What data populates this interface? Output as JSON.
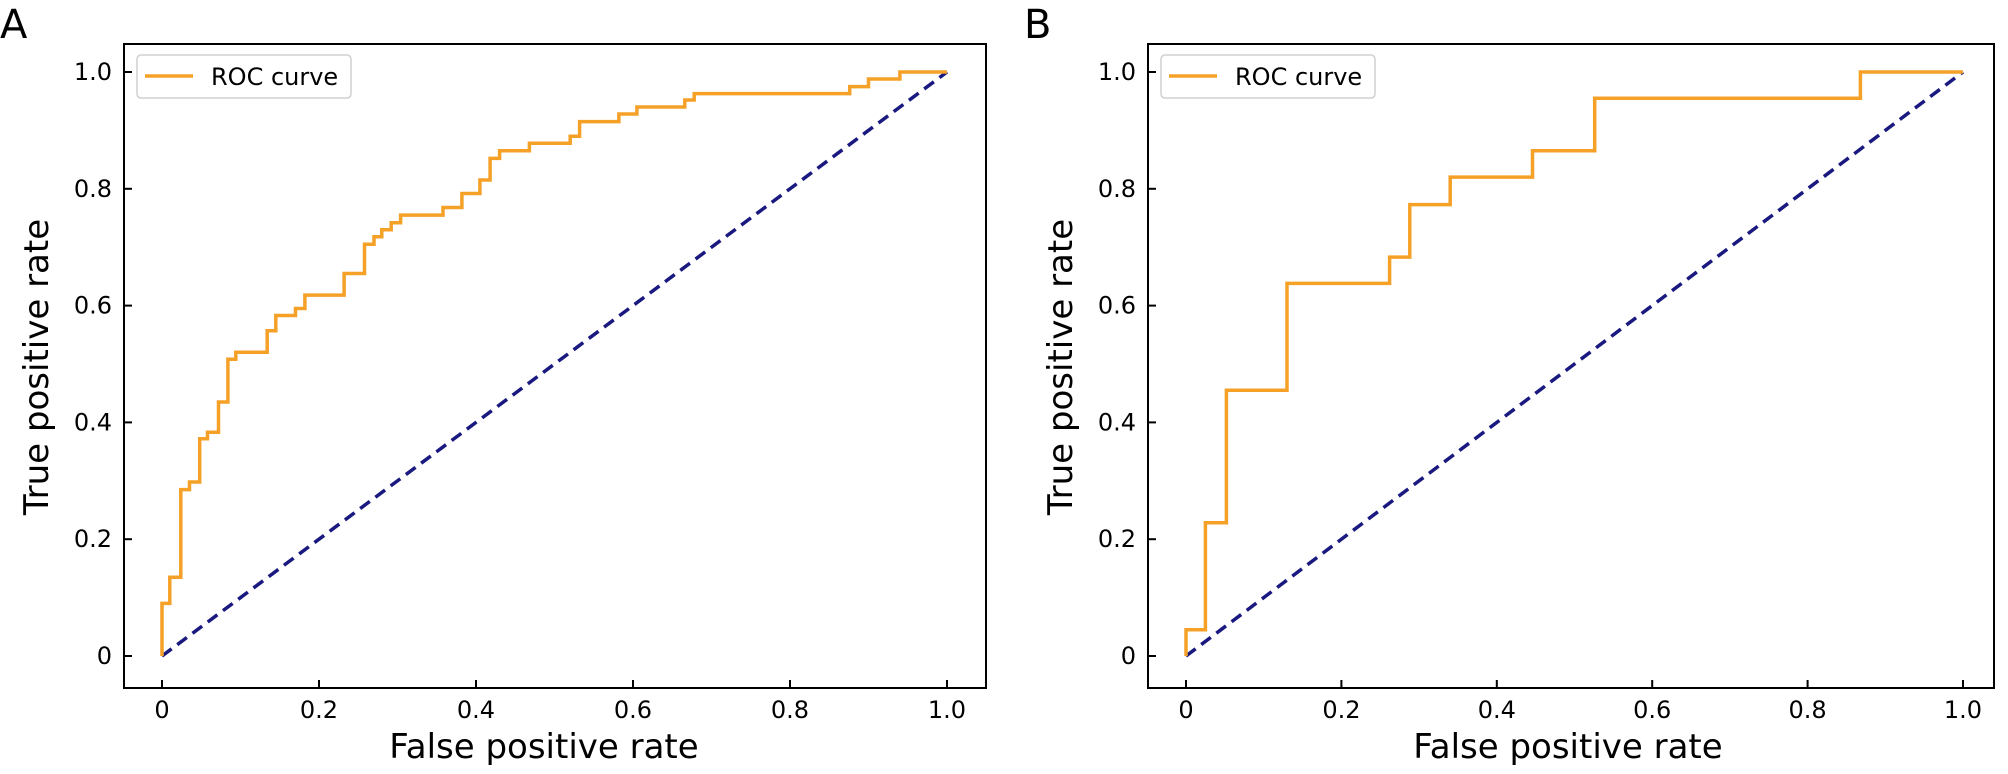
{
  "colors": {
    "roc": "#f5a128",
    "chance": "#191980",
    "axis": "#000000"
  },
  "chart_data": [
    {
      "panel": "A",
      "type": "line",
      "xlabel": "False positive rate",
      "ylabel": "True positive rate",
      "xlim": [
        0,
        1
      ],
      "ylim": [
        0,
        1
      ],
      "xticks": [
        {
          "v": 0,
          "label": "0"
        },
        {
          "v": 0.2,
          "label": "0.2"
        },
        {
          "v": 0.4,
          "label": "0.4"
        },
        {
          "v": 0.6,
          "label": "0.6"
        },
        {
          "v": 0.8,
          "label": "0.8"
        },
        {
          "v": 1.0,
          "label": "1.0"
        }
      ],
      "yticks": [
        {
          "v": 0,
          "label": "0"
        },
        {
          "v": 0.2,
          "label": "0.2"
        },
        {
          "v": 0.4,
          "label": "0.4"
        },
        {
          "v": 0.6,
          "label": "0.6"
        },
        {
          "v": 0.8,
          "label": "0.8"
        },
        {
          "v": 1.0,
          "label": "1.0"
        }
      ],
      "legend": {
        "placement": "top-left",
        "entries": [
          "ROC curve"
        ]
      },
      "series": [
        {
          "name": "ROC curve",
          "style": "step",
          "points": [
            [
              0,
              0
            ],
            [
              0,
              0.09
            ],
            [
              0.01,
              0.09
            ],
            [
              0.01,
              0.135
            ],
            [
              0.024,
              0.135
            ],
            [
              0.024,
              0.285
            ],
            [
              0.035,
              0.285
            ],
            [
              0.035,
              0.298
            ],
            [
              0.048,
              0.298
            ],
            [
              0.048,
              0.372
            ],
            [
              0.058,
              0.372
            ],
            [
              0.058,
              0.383
            ],
            [
              0.072,
              0.383
            ],
            [
              0.072,
              0.435
            ],
            [
              0.084,
              0.435
            ],
            [
              0.084,
              0.508
            ],
            [
              0.094,
              0.508
            ],
            [
              0.094,
              0.52
            ],
            [
              0.134,
              0.52
            ],
            [
              0.134,
              0.557
            ],
            [
              0.145,
              0.557
            ],
            [
              0.145,
              0.583
            ],
            [
              0.17,
              0.583
            ],
            [
              0.17,
              0.595
            ],
            [
              0.182,
              0.595
            ],
            [
              0.182,
              0.618
            ],
            [
              0.232,
              0.618
            ],
            [
              0.232,
              0.655
            ],
            [
              0.258,
              0.655
            ],
            [
              0.258,
              0.705
            ],
            [
              0.27,
              0.705
            ],
            [
              0.27,
              0.718
            ],
            [
              0.28,
              0.718
            ],
            [
              0.28,
              0.73
            ],
            [
              0.292,
              0.73
            ],
            [
              0.292,
              0.742
            ],
            [
              0.304,
              0.742
            ],
            [
              0.304,
              0.755
            ],
            [
              0.358,
              0.755
            ],
            [
              0.358,
              0.768
            ],
            [
              0.382,
              0.768
            ],
            [
              0.382,
              0.792
            ],
            [
              0.405,
              0.792
            ],
            [
              0.405,
              0.815
            ],
            [
              0.418,
              0.815
            ],
            [
              0.418,
              0.852
            ],
            [
              0.43,
              0.852
            ],
            [
              0.43,
              0.865
            ],
            [
              0.468,
              0.865
            ],
            [
              0.468,
              0.878
            ],
            [
              0.52,
              0.878
            ],
            [
              0.52,
              0.89
            ],
            [
              0.532,
              0.89
            ],
            [
              0.532,
              0.915
            ],
            [
              0.582,
              0.915
            ],
            [
              0.582,
              0.928
            ],
            [
              0.605,
              0.928
            ],
            [
              0.605,
              0.94
            ],
            [
              0.666,
              0.94
            ],
            [
              0.666,
              0.952
            ],
            [
              0.678,
              0.952
            ],
            [
              0.678,
              0.963
            ],
            [
              0.876,
              0.963
            ],
            [
              0.876,
              0.975
            ],
            [
              0.9,
              0.975
            ],
            [
              0.9,
              0.988
            ],
            [
              0.94,
              0.988
            ],
            [
              0.94,
              1.0
            ],
            [
              1.0,
              1.0
            ]
          ]
        },
        {
          "role": "chance",
          "style": "dashed",
          "points": [
            [
              0,
              0
            ],
            [
              1,
              1
            ]
          ]
        }
      ]
    },
    {
      "panel": "B",
      "type": "line",
      "xlabel": "False positive rate",
      "ylabel": "True positive rate",
      "xlim": [
        0,
        1
      ],
      "ylim": [
        0,
        1
      ],
      "xticks": [
        {
          "v": 0,
          "label": "0"
        },
        {
          "v": 0.2,
          "label": "0.2"
        },
        {
          "v": 0.4,
          "label": "0.4"
        },
        {
          "v": 0.6,
          "label": "0.6"
        },
        {
          "v": 0.8,
          "label": "0.8"
        },
        {
          "v": 1.0,
          "label": "1.0"
        }
      ],
      "yticks": [
        {
          "v": 0,
          "label": "0"
        },
        {
          "v": 0.2,
          "label": "0.2"
        },
        {
          "v": 0.4,
          "label": "0.4"
        },
        {
          "v": 0.6,
          "label": "0.6"
        },
        {
          "v": 0.8,
          "label": "0.8"
        },
        {
          "v": 1.0,
          "label": "1.0"
        }
      ],
      "legend": {
        "placement": "top-left",
        "entries": [
          "ROC curve"
        ]
      },
      "series": [
        {
          "name": "ROC curve",
          "style": "step",
          "points": [
            [
              0,
              0
            ],
            [
              0,
              0.045
            ],
            [
              0.025,
              0.045
            ],
            [
              0.025,
              0.228
            ],
            [
              0.052,
              0.228
            ],
            [
              0.052,
              0.455
            ],
            [
              0.13,
              0.455
            ],
            [
              0.13,
              0.638
            ],
            [
              0.262,
              0.638
            ],
            [
              0.262,
              0.683
            ],
            [
              0.288,
              0.683
            ],
            [
              0.288,
              0.773
            ],
            [
              0.34,
              0.773
            ],
            [
              0.34,
              0.82
            ],
            [
              0.446,
              0.82
            ],
            [
              0.446,
              0.865
            ],
            [
              0.526,
              0.865
            ],
            [
              0.526,
              0.955
            ],
            [
              0.868,
              0.955
            ],
            [
              0.868,
              1.0
            ],
            [
              1.0,
              1.0
            ]
          ]
        },
        {
          "role": "chance",
          "style": "dashed",
          "points": [
            [
              0,
              0
            ],
            [
              1,
              1
            ]
          ]
        }
      ]
    }
  ]
}
